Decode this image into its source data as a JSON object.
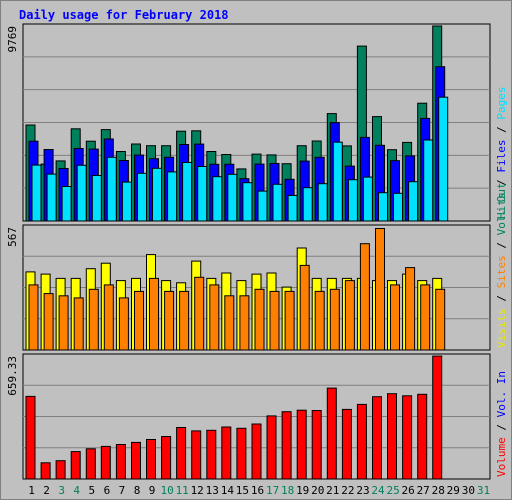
{
  "chart_data": {
    "type": "bar",
    "title": "Daily usage for February 2018",
    "categories": [
      "1",
      "2",
      "3",
      "4",
      "5",
      "6",
      "7",
      "8",
      "9",
      "10",
      "11",
      "12",
      "13",
      "14",
      "15",
      "16",
      "17",
      "18",
      "19",
      "20",
      "21",
      "22",
      "23",
      "24",
      "25",
      "26",
      "27",
      "28",
      "29",
      "30",
      "31"
    ],
    "weekend_days": [
      "3",
      "4",
      "10",
      "11",
      "17",
      "18",
      "24",
      "25",
      "31"
    ],
    "panels": [
      {
        "axis_max_label": "9769",
        "ymax": 9769,
        "right_label": [
          {
            "text": "Hits",
            "color": "#00805c"
          },
          {
            "text": " / ",
            "color": "#000000"
          },
          {
            "text": "Files",
            "color": "#0000ff"
          },
          {
            "text": " / ",
            "color": "#000000"
          },
          {
            "text": "Pages",
            "color": "#00e0ff"
          }
        ],
        "series": [
          {
            "name": "Hits",
            "color": "#00805c",
            "values": [
              4810,
              2850,
              3010,
              4620,
              4000,
              4580,
              3480,
              3860,
              3770,
              3770,
              4500,
              4520,
              3480,
              3330,
              2610,
              3350,
              3310,
              2870,
              3770,
              4010,
              5380,
              3760,
              8760,
              5230,
              3570,
              3940,
              5900,
              9770,
              null,
              null,
              null
            ]
          },
          {
            "name": "Files",
            "color": "#0000ff",
            "values": [
              4000,
              3580,
              2630,
              3630,
              3600,
              4110,
              3030,
              3300,
              3120,
              3190,
              3830,
              3850,
              2840,
              2840,
              2120,
              2850,
              2880,
              2090,
              3000,
              3190,
              4930,
              2750,
              4190,
              3790,
              3020,
              3260,
              5140,
              7730,
              null,
              null,
              null
            ]
          },
          {
            "name": "Pages",
            "color": "#00e0ff",
            "values": [
              2800,
              2350,
              1730,
              2790,
              2280,
              3190,
              1950,
              2390,
              2640,
              2460,
              2930,
              2730,
              2220,
              2340,
              1920,
              1500,
              1840,
              1280,
              1670,
              1870,
              3950,
              2070,
              2200,
              1420,
              1390,
              1970,
              4060,
              6200,
              null,
              null,
              null
            ]
          }
        ]
      },
      {
        "axis_max_label": "567",
        "ymax": 567,
        "right_label": [
          {
            "text": "Visits",
            "color": "#e6e600"
          },
          {
            "text": " / ",
            "color": "#000000"
          },
          {
            "text": "Sites",
            "color": "#ff8000"
          },
          {
            "text": " / ",
            "color": "#000000"
          },
          {
            "text": "Vol. Out",
            "color": "#00805c"
          }
        ],
        "series": [
          {
            "name": "Visits",
            "color": "#ffff00",
            "values": [
              360,
              350,
              330,
              330,
              375,
              400,
              320,
              330,
              440,
              320,
              310,
              410,
              330,
              355,
              320,
              350,
              355,
              290,
              470,
              330,
              330,
              330,
              330,
              320,
              320,
              350,
              320,
              330,
              null,
              null,
              null
            ]
          },
          {
            "name": "Sites",
            "color": "#ff8000",
            "values": [
              300,
              260,
              250,
              240,
              280,
              300,
              240,
              270,
              330,
              270,
              270,
              335,
              300,
              250,
              250,
              280,
              270,
              270,
              390,
              270,
              280,
              320,
              490,
              560,
              300,
              380,
              300,
              280,
              null,
              null,
              null
            ]
          }
        ]
      },
      {
        "axis_max_label": "659.33",
        "ymax": 659.33,
        "right_label": [
          {
            "text": "Volume",
            "color": "#ff0000"
          },
          {
            "text": " / ",
            "color": "#000000"
          },
          {
            "text": "Vol. In",
            "color": "#0000ff"
          }
        ],
        "series": [
          {
            "name": "Volume",
            "color": "#ff0000",
            "values": [
              443,
              87,
              98,
              147,
              162,
              175,
              185,
              196,
              212,
              228,
              276,
              258,
              261,
              279,
              272,
              295,
              338,
              361,
              369,
              367,
              487,
              373,
              400,
              441,
              457,
              446,
              454,
              659,
              null,
              null,
              null
            ]
          }
        ]
      }
    ]
  }
}
